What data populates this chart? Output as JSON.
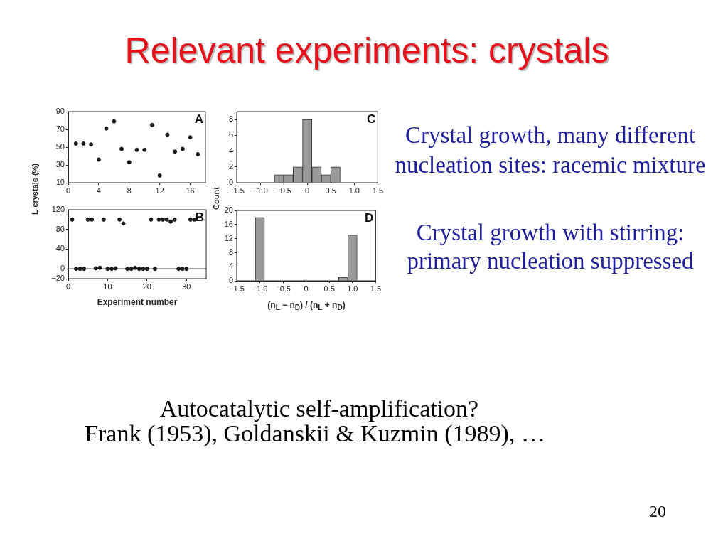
{
  "chart_data": [
    {
      "type": "scatter",
      "title": "Relevant experiments: crystals",
      "ylabel": "L-crystals (%)",
      "x": [
        1,
        2,
        3,
        4,
        5,
        6,
        7,
        8,
        9,
        10,
        11,
        12,
        13,
        14,
        15,
        16,
        17
      ],
      "values": [
        54,
        54,
        53,
        36,
        71,
        79,
        48,
        33,
        47,
        47,
        75,
        18,
        64,
        45,
        48,
        61,
        42
      ],
      "color": "#1a1a1a",
      "marker": "circle",
      "xlim": [
        0,
        18
      ],
      "xticks": [
        0,
        4,
        8,
        12,
        16
      ],
      "ylim": [
        10,
        90
      ],
      "yticks": [
        10,
        30,
        50,
        70,
        90
      ],
      "grid": false,
      "annotations": [
        "A"
      ]
    },
    {
      "type": "scatter",
      "xlabel": "Experiment number",
      "x": [
        1,
        2,
        3,
        4,
        5,
        6,
        7,
        8,
        9,
        10,
        11,
        12,
        13,
        14,
        15,
        16,
        17,
        18,
        19,
        20,
        21,
        22,
        23,
        24,
        25,
        26,
        27,
        28,
        29,
        30,
        31,
        32
      ],
      "values": [
        100,
        0,
        0,
        0,
        100,
        100,
        1,
        2,
        100,
        0,
        0,
        1,
        100,
        92,
        0,
        0,
        2,
        0,
        0,
        0,
        100,
        0,
        100,
        100,
        100,
        96,
        100,
        0,
        0,
        0,
        100,
        100
      ],
      "color": "#1a1a1a",
      "marker": "circle",
      "xlim": [
        0,
        35
      ],
      "xticks": [
        0,
        10,
        20,
        30
      ],
      "ylim": [
        -20,
        120
      ],
      "yticks": [
        {
          "value": -20,
          "label": "−20"
        },
        0,
        40,
        80,
        120
      ],
      "ref_lines": [
        {
          "axis": "y",
          "value": 0,
          "color": "#1a1a1a"
        }
      ],
      "grid": false,
      "annotations": [
        "B"
      ]
    },
    {
      "type": "histogram",
      "ylabel": "Count",
      "bins": [
        -0.7,
        -0.5,
        -0.3,
        -0.1,
        0.1,
        0.3,
        0.5,
        0.7
      ],
      "values": [
        1,
        1,
        2,
        8,
        2,
        1,
        2
      ],
      "color": "#9a9a9a",
      "xlim": [
        -1.5,
        1.5
      ],
      "xticks": [
        {
          "value": -1.5,
          "label": "−1.5"
        },
        {
          "value": -1,
          "label": "−1.0"
        },
        {
          "value": -0.5,
          "label": "−0.5"
        },
        0,
        0.5,
        {
          "value": 1,
          "label": "1.0"
        },
        1.5
      ],
      "ylim": [
        0,
        9
      ],
      "yticks": [
        0,
        2,
        4,
        6,
        8
      ],
      "grid": false,
      "annotations": [
        "C",
        "Crystal growth, many different\nnucleation sites: racemic mixture"
      ]
    },
    {
      "type": "histogram",
      "xlabel": "(n$_{L}$ − n$_{D}$) / (n$_{L}$ + n$_{D}$)",
      "bins": [
        -1.1,
        -0.9,
        -0.7,
        -0.5,
        -0.3,
        -0.1,
        0.1,
        0.3,
        0.5,
        0.7,
        0.9,
        1.1
      ],
      "values": [
        18,
        0,
        0,
        0,
        0,
        0,
        0,
        0,
        0,
        1,
        13
      ],
      "color": "#9a9a9a",
      "xlim": [
        -1.5,
        1.5
      ],
      "xticks": [
        {
          "value": -1.5,
          "label": "−1.5"
        },
        {
          "value": -1,
          "label": "−1.0"
        },
        {
          "value": -0.5,
          "label": "−0.5"
        },
        0,
        0.5,
        {
          "value": 1,
          "label": "1.0"
        },
        1.5
      ],
      "ylim": [
        0,
        20
      ],
      "yticks": [
        0,
        4,
        8,
        12,
        16,
        20
      ],
      "grid": false,
      "annotations": [
        "D",
        "Crystal growth with stirring:\nprimary nucleation suppressed",
        "Autocatalytic self-amplification?",
        "Frank (1953), Goldanskii & Kuzmin (1989), …",
        "20"
      ]
    }
  ]
}
